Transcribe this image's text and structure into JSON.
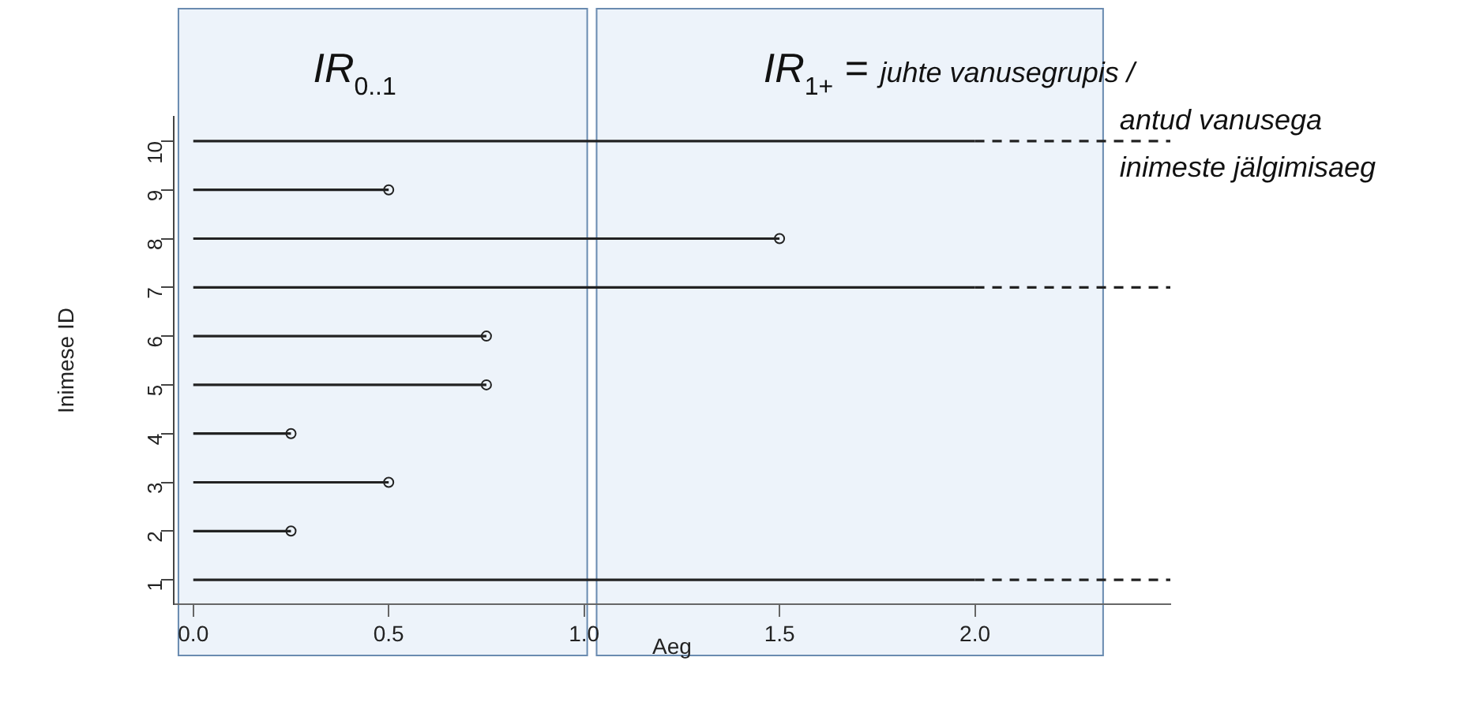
{
  "chart_data": {
    "type": "line",
    "xlabel": "Aeg",
    "ylabel": "Inimese ID",
    "marker": "none",
    "xlim": [
      -0.05,
      2.5
    ],
    "xticks": [
      {
        "value": 0,
        "label": "0.0"
      },
      {
        "value": 0.5,
        "label": "0.5"
      },
      {
        "value": 1,
        "label": "1.0"
      },
      {
        "value": 1.5,
        "label": "1.5"
      },
      {
        "value": 2,
        "label": "2.0"
      }
    ],
    "ylim": [
      0.5,
      10.5
    ],
    "yticks": [
      1,
      2,
      3,
      4,
      5,
      6,
      7,
      8,
      9,
      10
    ],
    "series": [
      {
        "color": "#222222",
        "x": [
          0,
          2
        ],
        "values": [
          1,
          1
        ]
      },
      {
        "color": "#222222",
        "x": [
          0,
          0.25
        ],
        "values": [
          2,
          2
        ]
      },
      {
        "color": "#222222",
        "x": [
          0,
          0.5
        ],
        "values": [
          3,
          3
        ]
      },
      {
        "color": "#222222",
        "x": [
          0,
          0.25
        ],
        "values": [
          4,
          4
        ]
      },
      {
        "color": "#222222",
        "x": [
          0,
          0.75
        ],
        "values": [
          5,
          5
        ]
      },
      {
        "color": "#222222",
        "x": [
          0,
          0.75
        ],
        "values": [
          6,
          6
        ]
      },
      {
        "color": "#222222",
        "x": [
          0,
          2
        ],
        "values": [
          7,
          7
        ]
      },
      {
        "color": "#222222",
        "x": [
          0,
          1.5
        ],
        "values": [
          8,
          8
        ]
      },
      {
        "color": "#222222",
        "x": [
          0,
          0.5
        ],
        "values": [
          9,
          9
        ]
      },
      {
        "color": "#222222",
        "x": [
          0,
          2
        ],
        "values": [
          10,
          10
        ]
      },
      {
        "color": "#222222",
        "line_style": "dashed",
        "x": [
          2,
          2.5
        ],
        "values": [
          1,
          1
        ]
      },
      {
        "color": "#222222",
        "line_style": "dashed",
        "x": [
          2,
          2.5
        ],
        "values": [
          7,
          7
        ]
      },
      {
        "color": "#222222",
        "line_style": "dashed",
        "x": [
          2,
          2.5
        ],
        "values": [
          10,
          10
        ]
      },
      {
        "type": "scatter",
        "color": "#222222",
        "marker": "circle",
        "x": [
          0.25,
          0.5,
          0.25,
          0.75,
          0.75,
          1.5,
          0.5
        ],
        "values": [
          2,
          3,
          4,
          5,
          6,
          8,
          9
        ]
      }
    ],
    "bands": [
      {
        "axis": "x",
        "from": -0.04,
        "to": 1.01,
        "label": "IR$_{0..1}$",
        "color": "#edf3fa"
      },
      {
        "axis": "x",
        "from": 1.03,
        "to": 2.33,
        "label": "IR$_{1+}$ = juhte vanusegrupis / antud vanusega inimeste jälgimisaeg",
        "color": "#edf3fa"
      }
    ],
    "grid": false,
    "legend": false
  }
}
